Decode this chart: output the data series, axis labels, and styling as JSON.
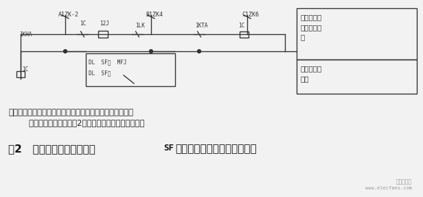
{
  "bg_color": "#f2f2f2",
  "title_large": "图2   甲、乙送风机辅助接点",
  "title_sf": "SF",
  "title_small": "在给粉机电源控制回路示意图",
  "note_line1": "说明：给粉机乙侧电源控制回路图同给粉机甲侧电源控制回",
  "note_line2": "        路图，只是回路编号为2字开关，故此处不再重复画出",
  "box1_text": "给粉机甲侧\n电源控制回\n路",
  "box2_text": "送风机辅助\n接点",
  "watermark1": "电子发烧友",
  "watermark2": "www.elecfans.com",
  "label_A1ZK2": "A1ZK-2",
  "label_B1ZK4": "B1ZK4",
  "label_C1ZK6": "C1ZK6",
  "label_1C_top1": "1C",
  "label_12J": "12J",
  "label_1KHA": "1KHA",
  "label_1LK": "1LK",
  "label_1KTA": "1KTA",
  "label_1C_top2": "1C",
  "label_1C_bot": "1C",
  "label_DL_SF_jia": "DL  SF甲  MFJ",
  "label_DL_SF_yi": "DL  SF乙"
}
